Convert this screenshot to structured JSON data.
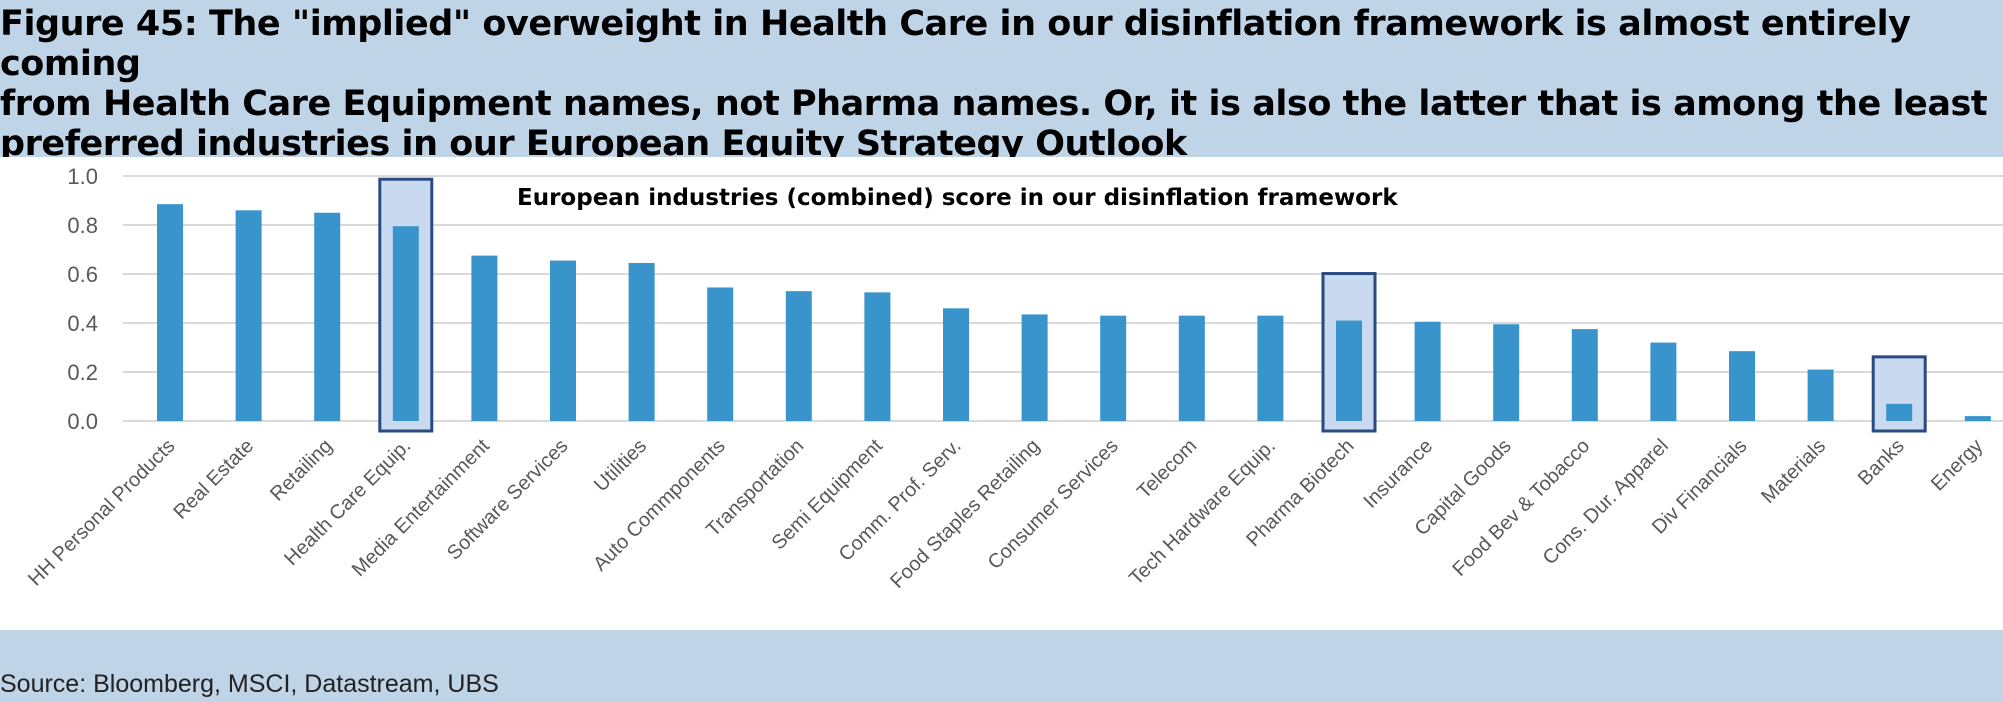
{
  "figure_title": "Figure 45: The \"implied\" overweight in Health Care in our disinflation framework is almost entirely coming\nfrom Health Care Equipment names, not Pharma names. Or, it is also the latter that is among the least\npreferred industries in our European Equity Strategy Outlook",
  "source": "Source: Bloomberg, MSCI, Datastream, UBS",
  "colors": {
    "bar": "#3a94cc",
    "highlight_fill": "#c9daf0",
    "highlight_border": "#2a4a82",
    "grid": "#d9d9d9",
    "background": "#c0d4e8"
  },
  "chart_data": {
    "type": "bar",
    "title": "European industries (combined) score in our disinflation framework",
    "xlabel": "",
    "ylabel": "",
    "ylim": [
      0,
      1
    ],
    "yticks": [
      "0.0",
      "0.2",
      "0.4",
      "0.6",
      "0.8",
      "1.0"
    ],
    "grid": true,
    "categories": [
      "HH Personal Products",
      "Real Estate",
      "Retailing",
      "Health Care Equip.",
      "Media Entertainment",
      "Software Services",
      "Utilities",
      "Auto Commponents",
      "Transportation",
      "Semi Equipment",
      "Comm. Prof. Serv.",
      "Food Staples Retailing",
      "Consumer Services",
      "Telecom",
      "Tech Hardware Equip.",
      "Pharma Biotech",
      "Insurance",
      "Capital Goods",
      "Food Bev & Tobacco",
      "Cons. Dur. Apparel",
      "Div Financials",
      "Materials",
      "Banks",
      "Energy"
    ],
    "values": [
      0.885,
      0.86,
      0.85,
      0.795,
      0.675,
      0.655,
      0.645,
      0.545,
      0.53,
      0.525,
      0.46,
      0.435,
      0.43,
      0.43,
      0.43,
      0.41,
      0.405,
      0.395,
      0.375,
      0.32,
      0.285,
      0.21,
      0.07,
      0.02
    ],
    "highlighted": [
      "Health Care Equip.",
      "Pharma Biotech",
      "Banks"
    ]
  }
}
